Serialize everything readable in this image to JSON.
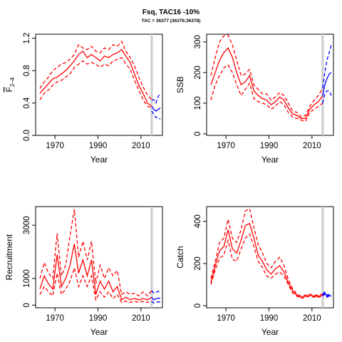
{
  "figure": {
    "title": "Fsq, TAC16 -10%",
    "subtitle": "TAC = 36377 (36376;36378)"
  },
  "colors": {
    "history": "#ff0000",
    "projection": "#0000ff",
    "divider": "#cccccc",
    "axis": "#000000"
  },
  "chart_data": [
    {
      "id": "f",
      "type": "line",
      "xlabel": "Year",
      "ylabel": "F̅2–4",
      "ylabel_main": "F",
      "ylabel_sub": "2–4",
      "xlim": [
        1961,
        2020
      ],
      "ylim": [
        0,
        1.25
      ],
      "xticks": [
        1970,
        1990,
        2010
      ],
      "yticks": [
        0.0,
        0.4,
        0.8,
        1.2
      ],
      "ytick_labels": [
        "0.0",
        "0.4",
        "0.8",
        "1.2"
      ],
      "divider_year": 2015,
      "history": {
        "x": [
          1963,
          1965,
          1967,
          1969,
          1971,
          1973,
          1975,
          1977,
          1979,
          1981,
          1983,
          1985,
          1987,
          1989,
          1991,
          1993,
          1995,
          1997,
          1999,
          2001,
          2003,
          2005,
          2007,
          2009,
          2011,
          2013,
          2015
        ],
        "mid": [
          0.52,
          0.58,
          0.64,
          0.7,
          0.72,
          0.76,
          0.8,
          0.86,
          0.92,
          1.0,
          1.04,
          0.96,
          1.0,
          0.96,
          0.92,
          0.98,
          0.96,
          1.0,
          1.02,
          1.06,
          0.98,
          0.9,
          0.76,
          0.62,
          0.52,
          0.4,
          0.36
        ],
        "upper": [
          0.58,
          0.66,
          0.72,
          0.8,
          0.84,
          0.88,
          0.9,
          0.94,
          1.0,
          1.12,
          1.08,
          1.06,
          1.1,
          1.04,
          1.02,
          1.08,
          1.06,
          1.12,
          1.1,
          1.16,
          1.04,
          0.96,
          0.86,
          0.72,
          0.6,
          0.5,
          0.44
        ],
        "lower": [
          0.44,
          0.52,
          0.56,
          0.62,
          0.66,
          0.68,
          0.72,
          0.76,
          0.84,
          0.88,
          0.92,
          0.88,
          0.9,
          0.88,
          0.84,
          0.88,
          0.86,
          0.92,
          0.94,
          0.96,
          0.88,
          0.82,
          0.68,
          0.56,
          0.44,
          0.36,
          0.34
        ]
      },
      "projection": {
        "x": [
          2015,
          2016,
          2017,
          2018,
          2019
        ],
        "mid": [
          0.36,
          0.32,
          0.3,
          0.32,
          0.34
        ],
        "upper": [
          0.44,
          0.44,
          0.4,
          0.48,
          0.52
        ],
        "lower": [
          0.3,
          0.26,
          0.22,
          0.22,
          0.2
        ]
      }
    },
    {
      "id": "ssb",
      "type": "line",
      "xlabel": "Year",
      "ylabel": "SSB",
      "xlim": [
        1961,
        2020
      ],
      "ylim": [
        -5,
        325
      ],
      "xticks": [
        1970,
        1990,
        2010
      ],
      "yticks": [
        0,
        100,
        200,
        300
      ],
      "ytick_labels": [
        "0",
        "100",
        "200",
        "300"
      ],
      "divider_year": 2015,
      "history": {
        "x": [
          1963,
          1965,
          1967,
          1969,
          1971,
          1973,
          1975,
          1977,
          1979,
          1981,
          1983,
          1985,
          1987,
          1989,
          1991,
          1993,
          1995,
          1997,
          1999,
          2001,
          2003,
          2005,
          2007,
          2009,
          2011,
          2013,
          2015
        ],
        "mid": [
          160,
          200,
          240,
          265,
          280,
          250,
          200,
          160,
          170,
          190,
          140,
          125,
          115,
          110,
          95,
          105,
          120,
          110,
          85,
          65,
          60,
          50,
          50,
          80,
          95,
          105,
          125
        ],
        "upper": [
          190,
          250,
          300,
          320,
          322,
          290,
          240,
          190,
          195,
          210,
          160,
          145,
          130,
          130,
          110,
          120,
          135,
          125,
          100,
          75,
          70,
          55,
          60,
          90,
          110,
          125,
          150
        ],
        "lower": [
          110,
          160,
          190,
          215,
          225,
          200,
          160,
          125,
          145,
          165,
          115,
          105,
          100,
          95,
          80,
          90,
          105,
          95,
          70,
          55,
          50,
          45,
          40,
          70,
          80,
          90,
          100
        ]
      },
      "projection": {
        "x": [
          2015,
          2016,
          2017,
          2018,
          2019
        ],
        "mid": [
          125,
          160,
          180,
          195,
          200
        ],
        "upper": [
          150,
          200,
          240,
          265,
          290
        ],
        "lower": [
          100,
          130,
          140,
          140,
          125
        ]
      }
    },
    {
      "id": "recruitment",
      "type": "line",
      "xlabel": "Year",
      "ylabel": "Recruitment",
      "xlim": [
        1961,
        2020
      ],
      "ylim": [
        -100,
        3700
      ],
      "xticks": [
        1970,
        1990,
        2010
      ],
      "yticks": [
        0,
        1000,
        3000
      ],
      "ytick_labels": [
        "0",
        "1000",
        "3000"
      ],
      "divider_year": 2015,
      "history": {
        "x": [
          1963,
          1965,
          1967,
          1969,
          1971,
          1973,
          1975,
          1977,
          1979,
          1981,
          1983,
          1985,
          1987,
          1989,
          1991,
          1993,
          1995,
          1997,
          1999,
          2001,
          2003,
          2005,
          2007,
          2009,
          2011,
          2013,
          2015
        ],
        "mid": [
          600,
          1100,
          800,
          600,
          1900,
          700,
          1000,
          1500,
          2300,
          1200,
          1700,
          1100,
          1700,
          400,
          900,
          600,
          900,
          500,
          700,
          200,
          300,
          200,
          250,
          200,
          250,
          200,
          300
        ],
        "upper": [
          1000,
          1600,
          1200,
          1000,
          2700,
          1100,
          1500,
          2600,
          3600,
          1800,
          2400,
          1700,
          2400,
          800,
          1500,
          1000,
          1400,
          1100,
          1300,
          400,
          500,
          400,
          450,
          350,
          500,
          350,
          550
        ],
        "lower": [
          400,
          700,
          500,
          350,
          1200,
          400,
          600,
          900,
          1400,
          700,
          1100,
          700,
          1100,
          200,
          500,
          300,
          500,
          250,
          400,
          100,
          150,
          100,
          150,
          100,
          150,
          100,
          150
        ]
      },
      "projection": {
        "x": [
          2015,
          2016,
          2017,
          2018,
          2019
        ],
        "mid": [
          300,
          200,
          240,
          260,
          260
        ],
        "upper": [
          550,
          450,
          480,
          520,
          520
        ],
        "lower": [
          150,
          80,
          110,
          120,
          120
        ]
      }
    },
    {
      "id": "catch",
      "type": "line",
      "xlabel": "Year",
      "ylabel": "Catch",
      "xlim": [
        1961,
        2020
      ],
      "ylim": [
        -10,
        470
      ],
      "xticks": [
        1970,
        1990,
        2010
      ],
      "yticks": [
        0,
        200,
        400
      ],
      "ytick_labels": [
        "0",
        "200",
        "400"
      ],
      "divider_year": 2015,
      "history": {
        "x": [
          1963,
          1965,
          1967,
          1969,
          1971,
          1973,
          1975,
          1977,
          1979,
          1981,
          1983,
          1985,
          1987,
          1989,
          1991,
          1993,
          1995,
          1997,
          1999,
          2001,
          2003,
          2005,
          2007,
          2009,
          2011,
          2013,
          2015
        ],
        "mid": [
          110,
          190,
          260,
          280,
          360,
          270,
          250,
          310,
          380,
          390,
          320,
          240,
          210,
          170,
          150,
          175,
          190,
          160,
          110,
          70,
          50,
          40,
          45,
          50,
          45,
          45,
          50
        ],
        "upper": [
          130,
          210,
          300,
          320,
          410,
          320,
          300,
          360,
          450,
          460,
          370,
          290,
          250,
          200,
          180,
          210,
          230,
          190,
          125,
          80,
          55,
          45,
          50,
          55,
          50,
          50,
          55
        ],
        "lower": [
          100,
          170,
          225,
          240,
          310,
          220,
          210,
          270,
          320,
          340,
          280,
          210,
          180,
          140,
          130,
          150,
          160,
          140,
          100,
          60,
          45,
          35,
          40,
          45,
          40,
          40,
          45
        ]
      },
      "projection": {
        "x": [
          2015,
          2016,
          2017,
          2018,
          2019
        ],
        "mid": [
          50,
          60,
          45,
          50,
          45
        ],
        "upper": [
          55,
          65,
          50,
          55,
          50
        ],
        "lower": [
          45,
          55,
          40,
          45,
          40
        ]
      }
    }
  ]
}
